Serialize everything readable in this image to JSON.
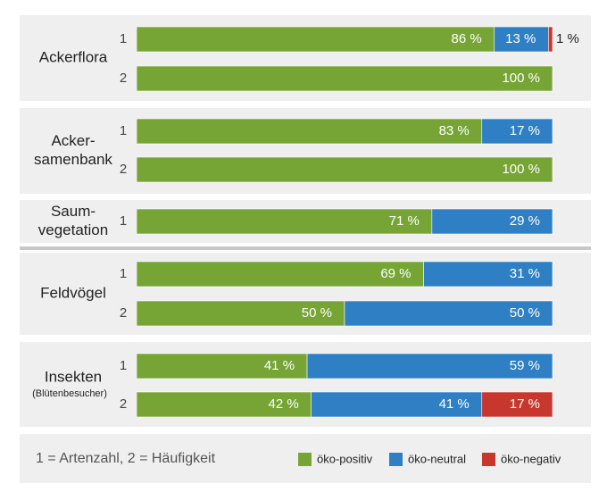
{
  "chart_data": {
    "type": "stacked-bar",
    "orientation": "horizontal",
    "xlim": [
      0,
      100
    ],
    "series": [
      {
        "name": "öko-positiv",
        "color": "#76a535"
      },
      {
        "name": "öko-neutral",
        "color": "#2e7fc3"
      },
      {
        "name": "öko-negativ",
        "color": "#c8372d"
      }
    ],
    "groups": [
      {
        "name": [
          "Ackerflora"
        ],
        "rows": [
          {
            "category": "1",
            "values": [
              86,
              13,
              1
            ],
            "value_labels": [
              "86 %",
              "13 %",
              "1 %"
            ]
          },
          {
            "category": "2",
            "values": [
              100
            ],
            "value_labels": [
              "100 %"
            ]
          }
        ]
      },
      {
        "name": [
          "Acker-",
          "samenbank"
        ],
        "rows": [
          {
            "category": "1",
            "values": [
              83,
              17
            ],
            "value_labels": [
              "83 %",
              "17 %"
            ]
          },
          {
            "category": "2",
            "values": [
              100
            ],
            "value_labels": [
              "100 %"
            ]
          }
        ]
      },
      {
        "name": [
          "Saum-",
          "vegetation"
        ],
        "rows": [
          {
            "category": "1",
            "values": [
              71,
              29
            ],
            "value_labels": [
              "71 %",
              "29 %"
            ]
          }
        ]
      },
      {
        "name": [
          "Feldvögel"
        ],
        "rows": [
          {
            "category": "1",
            "values": [
              69,
              31
            ],
            "value_labels": [
              "69 %",
              "31 %"
            ]
          },
          {
            "category": "2",
            "values": [
              50,
              50
            ],
            "value_labels": [
              "50 %",
              "50 %"
            ]
          }
        ]
      },
      {
        "name": [
          "Insekten"
        ],
        "subname": "(Blütenbesucher)",
        "rows": [
          {
            "category": "1",
            "values": [
              41,
              59
            ],
            "value_labels": [
              "41 %",
              "59 %"
            ]
          },
          {
            "category": "2",
            "values": [
              42,
              41,
              17
            ],
            "value_labels": [
              "42 %",
              "41 %",
              "17 %"
            ]
          }
        ]
      }
    ],
    "note": "1 = Artenzahl, 2 = Häufigkeit"
  }
}
